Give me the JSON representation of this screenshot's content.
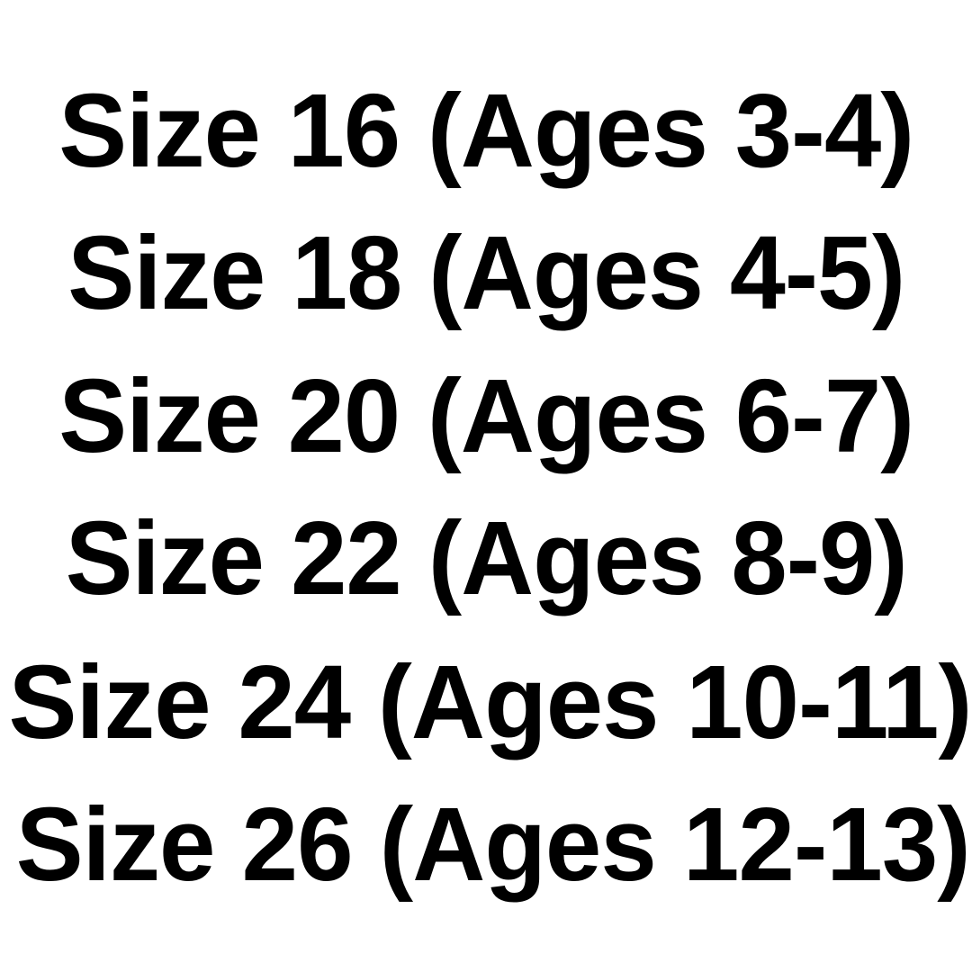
{
  "text_color": "#000000",
  "background_color": "#ffffff",
  "sizes": [
    {
      "label": "Size 16 (Ages 3-4)"
    },
    {
      "label": "Size 18 (Ages 4-5)"
    },
    {
      "label": "Size 20 (Ages 6-7)"
    },
    {
      "label": "Size 22 (Ages 8-9)"
    },
    {
      "label": "Size 24 (Ages 10-11)"
    },
    {
      "label": "Size 26 (Ages 12-13)"
    }
  ]
}
